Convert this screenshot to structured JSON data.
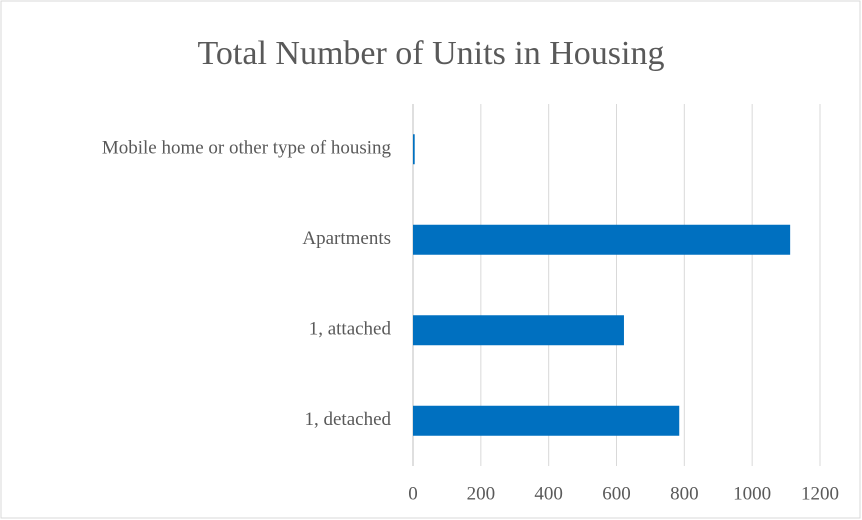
{
  "chart_data": {
    "type": "bar",
    "orientation": "horizontal",
    "title": "Total Number of Units in Housing",
    "categories": [
      "Mobile home or other type of housing",
      "Apartments",
      "1, attached",
      "1, detached"
    ],
    "values": [
      5,
      1112,
      622,
      785
    ],
    "color": "#0070c0",
    "xlim": [
      0,
      1200
    ],
    "xticks": [
      0,
      200,
      400,
      600,
      800,
      1000,
      1200
    ],
    "grid": true
  }
}
